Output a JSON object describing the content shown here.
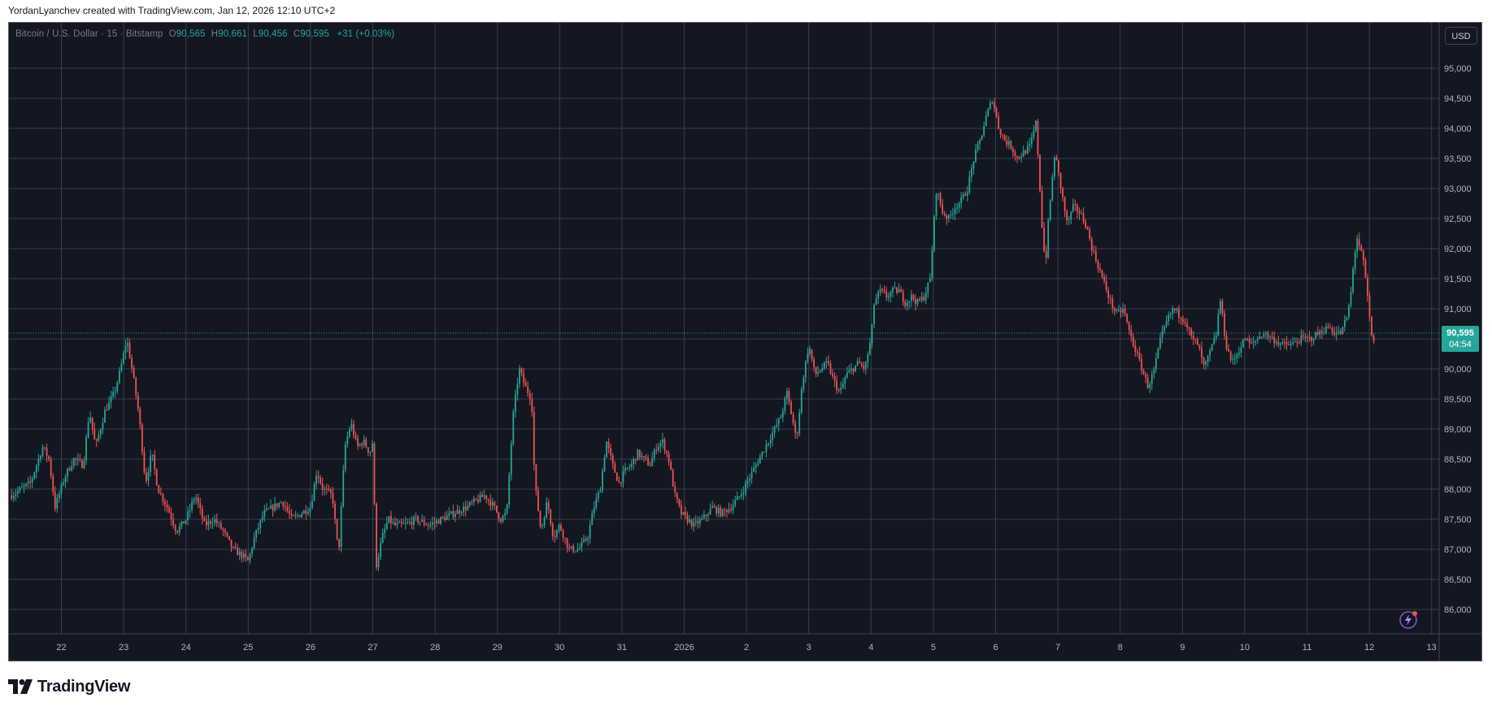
{
  "caption": "YordanLyanchev created with TradingView.com, Jan 12, 2026 12:10 UTC+2",
  "legend": {
    "symbol": "Bitcoin / U.S. Dollar · 15 · Bitstamp",
    "o_label": "O",
    "o_value": "90,565",
    "h_label": "H",
    "h_value": "90,661",
    "l_label": "L",
    "l_value": "90,456",
    "c_label": "C",
    "c_value": "90,595",
    "change": "+31 (+0.03%)"
  },
  "currency_button": "USD",
  "last_price": {
    "price": "90,595",
    "countdown": "04:54"
  },
  "brand": {
    "name": "TradingView"
  },
  "colors": {
    "up": "#26a69a",
    "down": "#ef5350",
    "background": "#131722",
    "grid": "#3a3e4a"
  },
  "chart_data": {
    "type": "candlestick",
    "title": "Bitcoin / U.S. Dollar · 15 · Bitstamp",
    "x_tick_labels": [
      "22",
      "23",
      "24",
      "25",
      "26",
      "27",
      "28",
      "29",
      "30",
      "31",
      "2026",
      "2",
      "3",
      "4",
      "5",
      "6",
      "7",
      "8",
      "9",
      "10",
      "11",
      "12",
      "13"
    ],
    "y_tick_labels": [
      "86,000",
      "86,500",
      "87,000",
      "87,500",
      "88,000",
      "88,500",
      "89,000",
      "89,500",
      "90,000",
      "90,500",
      "91,000",
      "91,500",
      "92,000",
      "92,500",
      "93,000",
      "93,500",
      "94,000",
      "94,500",
      "95,000"
    ],
    "ylim": [
      85500,
      95500
    ],
    "last_price": 90595,
    "grid": true,
    "price_path": [
      [
        21.2,
        87900
      ],
      [
        21.5,
        88100
      ],
      [
        21.7,
        88700
      ],
      [
        21.8,
        88500
      ],
      [
        21.9,
        87700
      ],
      [
        22.05,
        88200
      ],
      [
        22.2,
        88500
      ],
      [
        22.35,
        88400
      ],
      [
        22.45,
        89300
      ],
      [
        22.55,
        88700
      ],
      [
        22.7,
        89300
      ],
      [
        22.85,
        89600
      ],
      [
        22.95,
        90000
      ],
      [
        23.05,
        90500
      ],
      [
        23.15,
        89900
      ],
      [
        23.25,
        89200
      ],
      [
        23.35,
        88100
      ],
      [
        23.45,
        88600
      ],
      [
        23.55,
        88000
      ],
      [
        23.7,
        87700
      ],
      [
        23.85,
        87300
      ],
      [
        24.0,
        87500
      ],
      [
        24.15,
        87900
      ],
      [
        24.3,
        87400
      ],
      [
        24.45,
        87500
      ],
      [
        24.6,
        87300
      ],
      [
        24.75,
        87000
      ],
      [
        24.9,
        86900
      ],
      [
        25.0,
        86800
      ],
      [
        25.1,
        87200
      ],
      [
        25.25,
        87600
      ],
      [
        25.4,
        87700
      ],
      [
        25.55,
        87800
      ],
      [
        25.7,
        87500
      ],
      [
        25.85,
        87600
      ],
      [
        26.0,
        87700
      ],
      [
        26.1,
        88300
      ],
      [
        26.2,
        88000
      ],
      [
        26.35,
        87900
      ],
      [
        26.45,
        86900
      ],
      [
        26.55,
        88700
      ],
      [
        26.65,
        89100
      ],
      [
        26.75,
        88700
      ],
      [
        26.85,
        88800
      ],
      [
        26.95,
        88600
      ],
      [
        27.0,
        88800
      ],
      [
        27.05,
        86700
      ],
      [
        27.15,
        87200
      ],
      [
        27.25,
        87500
      ],
      [
        27.35,
        87400
      ],
      [
        27.5,
        87400
      ],
      [
        27.7,
        87500
      ],
      [
        27.9,
        87400
      ],
      [
        28.1,
        87500
      ],
      [
        28.3,
        87600
      ],
      [
        28.5,
        87700
      ],
      [
        28.65,
        87800
      ],
      [
        28.8,
        87900
      ],
      [
        28.95,
        87700
      ],
      [
        29.05,
        87500
      ],
      [
        29.15,
        87600
      ],
      [
        29.25,
        89200
      ],
      [
        29.35,
        90000
      ],
      [
        29.45,
        89700
      ],
      [
        29.55,
        89500
      ],
      [
        29.6,
        88100
      ],
      [
        29.7,
        87300
      ],
      [
        29.8,
        87800
      ],
      [
        29.9,
        87200
      ],
      [
        30.0,
        87400
      ],
      [
        30.15,
        87000
      ],
      [
        30.3,
        87000
      ],
      [
        30.45,
        87200
      ],
      [
        30.55,
        87700
      ],
      [
        30.65,
        88000
      ],
      [
        30.75,
        88800
      ],
      [
        30.85,
        88400
      ],
      [
        30.95,
        88100
      ],
      [
        31.05,
        88300
      ],
      [
        31.15,
        88400
      ],
      [
        31.25,
        88600
      ],
      [
        31.35,
        88500
      ],
      [
        31.45,
        88400
      ],
      [
        31.55,
        88700
      ],
      [
        31.65,
        88800
      ],
      [
        31.75,
        88500
      ],
      [
        31.85,
        87900
      ],
      [
        31.95,
        87600
      ],
      [
        32.05,
        87500
      ],
      [
        32.15,
        87400
      ],
      [
        32.3,
        87500
      ],
      [
        32.45,
        87700
      ],
      [
        32.6,
        87600
      ],
      [
        32.75,
        87700
      ],
      [
        32.9,
        87900
      ],
      [
        33.0,
        88100
      ],
      [
        33.1,
        88300
      ],
      [
        33.25,
        88600
      ],
      [
        33.4,
        88900
      ],
      [
        33.55,
        89200
      ],
      [
        33.65,
        89600
      ],
      [
        33.75,
        89100
      ],
      [
        33.8,
        88800
      ],
      [
        33.9,
        89800
      ],
      [
        34.0,
        90400
      ],
      [
        34.1,
        89900
      ],
      [
        34.2,
        90000
      ],
      [
        34.3,
        90100
      ],
      [
        34.4,
        89800
      ],
      [
        34.5,
        89600
      ],
      [
        34.6,
        89900
      ],
      [
        34.7,
        90000
      ],
      [
        34.8,
        90100
      ],
      [
        34.9,
        90000
      ],
      [
        35.0,
        90500
      ],
      [
        35.05,
        91100
      ],
      [
        35.15,
        91300
      ],
      [
        35.25,
        91200
      ],
      [
        35.35,
        91300
      ],
      [
        35.45,
        91300
      ],
      [
        35.55,
        91100
      ],
      [
        35.65,
        91200
      ],
      [
        35.75,
        91100
      ],
      [
        35.85,
        91200
      ],
      [
        35.95,
        91500
      ],
      [
        36.0,
        92300
      ],
      [
        36.05,
        93000
      ],
      [
        36.15,
        92600
      ],
      [
        36.25,
        92500
      ],
      [
        36.35,
        92700
      ],
      [
        36.45,
        92800
      ],
      [
        36.55,
        93000
      ],
      [
        36.65,
        93500
      ],
      [
        36.75,
        93800
      ],
      [
        36.85,
        94200
      ],
      [
        36.95,
        94500
      ],
      [
        37.05,
        94000
      ],
      [
        37.15,
        93800
      ],
      [
        37.25,
        93700
      ],
      [
        37.35,
        93500
      ],
      [
        37.45,
        93600
      ],
      [
        37.55,
        93700
      ],
      [
        37.65,
        94100
      ],
      [
        37.7,
        93200
      ],
      [
        37.75,
        92300
      ],
      [
        37.8,
        91700
      ],
      [
        37.85,
        92500
      ],
      [
        37.95,
        93600
      ],
      [
        38.05,
        93000
      ],
      [
        38.15,
        92400
      ],
      [
        38.25,
        92700
      ],
      [
        38.35,
        92600
      ],
      [
        38.45,
        92400
      ],
      [
        38.55,
        92000
      ],
      [
        38.65,
        91700
      ],
      [
        38.75,
        91400
      ],
      [
        38.85,
        91100
      ],
      [
        38.95,
        90900
      ],
      [
        39.05,
        91000
      ],
      [
        39.15,
        90600
      ],
      [
        39.25,
        90300
      ],
      [
        39.35,
        90000
      ],
      [
        39.45,
        89700
      ],
      [
        39.55,
        90000
      ],
      [
        39.65,
        90500
      ],
      [
        39.75,
        90800
      ],
      [
        39.85,
        91000
      ],
      [
        39.95,
        90900
      ],
      [
        40.05,
        90800
      ],
      [
        40.15,
        90500
      ],
      [
        40.25,
        90400
      ],
      [
        40.35,
        90000
      ],
      [
        40.45,
        90300
      ],
      [
        40.55,
        90600
      ],
      [
        40.6,
        91200
      ],
      [
        40.7,
        90400
      ],
      [
        40.8,
        90100
      ],
      [
        40.9,
        90300
      ],
      [
        41.0,
        90500
      ],
      [
        41.1,
        90400
      ],
      [
        41.2,
        90500
      ],
      [
        41.3,
        90600
      ],
      [
        41.45,
        90500
      ],
      [
        41.6,
        90400
      ],
      [
        41.75,
        90400
      ],
      [
        41.9,
        90500
      ],
      [
        42.05,
        90500
      ],
      [
        42.2,
        90600
      ],
      [
        42.35,
        90700
      ],
      [
        42.45,
        90600
      ],
      [
        42.55,
        90600
      ],
      [
        42.65,
        90900
      ],
      [
        42.7,
        91200
      ],
      [
        42.75,
        91800
      ],
      [
        42.8,
        92200
      ],
      [
        42.85,
        92000
      ],
      [
        42.9,
        91800
      ],
      [
        42.95,
        91400
      ],
      [
        43.0,
        90900
      ],
      [
        43.05,
        90400
      ],
      [
        43.1,
        90600
      ]
    ]
  }
}
